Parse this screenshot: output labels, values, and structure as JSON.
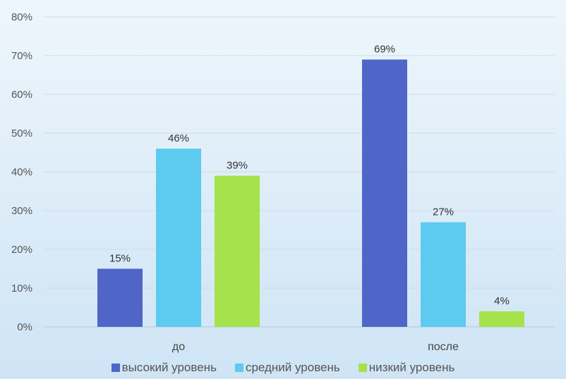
{
  "chart_data": {
    "type": "bar",
    "categories": [
      "до",
      "после"
    ],
    "series": [
      {
        "name": "высокий уровень",
        "values": [
          15,
          69
        ],
        "color": "#4f66c8"
      },
      {
        "name": "средний уровень",
        "values": [
          46,
          27
        ],
        "color": "#5ccbef"
      },
      {
        "name": "низкий уровень",
        "values": [
          39,
          4
        ],
        "color": "#a5e24c"
      }
    ],
    "ylim": [
      0,
      80
    ],
    "yticks": [
      0,
      10,
      20,
      30,
      40,
      50,
      60,
      70,
      80
    ],
    "tick_suffix": "%",
    "data_label_suffix": "%",
    "grid": true,
    "legend_position": "bottom",
    "title": "",
    "xlabel": "",
    "ylabel": ""
  }
}
